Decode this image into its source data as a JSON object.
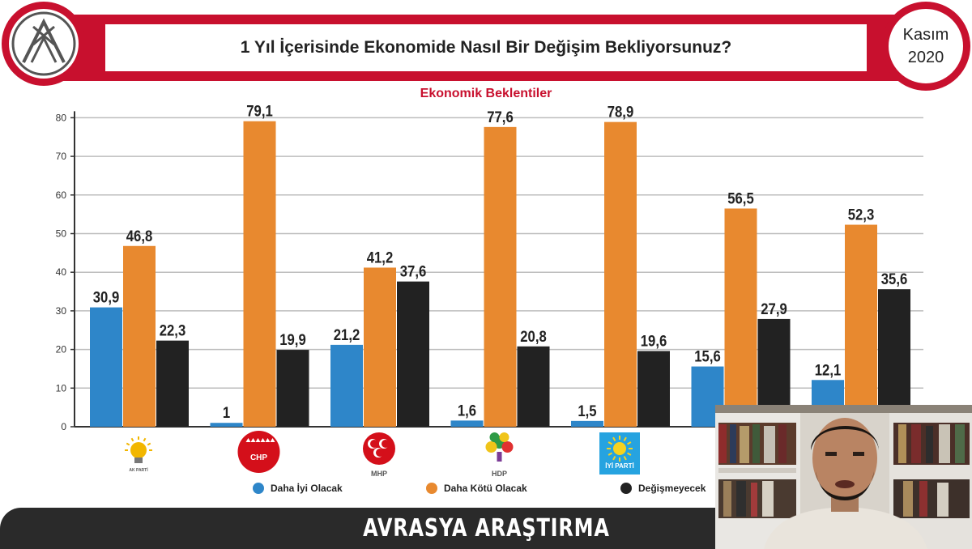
{
  "header": {
    "title": "1 Yıl İçerisinde Ekonomide Nasıl Bir Değişim Bekliyorsunuz?",
    "date_month": "Kasım",
    "date_year": "2020"
  },
  "footer": {
    "brand": "AVRASYA ARAŞTIRMA"
  },
  "colors": {
    "brand_red": "#c8102e",
    "series_better": "#2e86c9",
    "series_worse": "#e8892f",
    "series_same": "#222222"
  },
  "chart_data": {
    "type": "bar",
    "title": "Ekonomik Beklentiler",
    "categories": [
      "AK PARTİ",
      "CHP",
      "MHP",
      "HDP",
      "İYİ PARTİ",
      "",
      ""
    ],
    "category_icons": [
      "akparti-logo-icon",
      "chp-logo-icon",
      "mhp-logo-icon",
      "hdp-logo-icon",
      "iyiparti-logo-icon",
      "",
      ""
    ],
    "series": [
      {
        "name": "Daha İyi Olacak",
        "values": [
          30.9,
          1,
          21.2,
          1.6,
          1.5,
          15.6,
          12.1
        ],
        "labels": [
          "30,9",
          "1",
          "21,2",
          "1,6",
          "1,5",
          "15,6",
          "12,1"
        ]
      },
      {
        "name": "Daha Kötü Olacak",
        "values": [
          46.8,
          79.1,
          41.2,
          77.6,
          78.9,
          56.5,
          52.3
        ],
        "labels": [
          "46,8",
          "79,1",
          "41,2",
          "77,6",
          "78,9",
          "56,5",
          "52,3"
        ]
      },
      {
        "name": "Değişmeyecek",
        "values": [
          22.3,
          19.9,
          37.6,
          20.8,
          19.6,
          27.9,
          35.6
        ],
        "labels": [
          "22,3",
          "19,9",
          "37,6",
          "20,8",
          "19,6",
          "27,9",
          "35,6"
        ]
      }
    ],
    "yticks": [
      "0",
      "10",
      "20",
      "30",
      "40",
      "50",
      "60",
      "70",
      "80"
    ],
    "ylim": [
      0,
      80
    ],
    "grid": true,
    "legend": "bottom"
  }
}
